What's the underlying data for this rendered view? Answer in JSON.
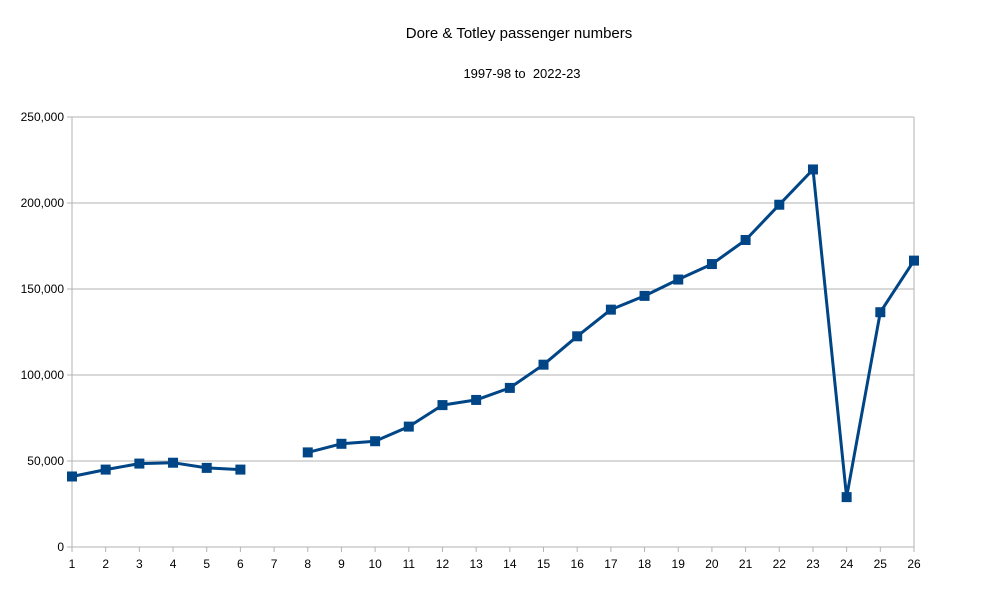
{
  "chart_data": {
    "type": "line",
    "title": "Dore & Totley passenger numbers",
    "subtitle": "1997-98 to  2022-23",
    "xlabel": "",
    "ylabel": "",
    "x": [
      1,
      2,
      3,
      4,
      5,
      6,
      7,
      8,
      9,
      10,
      11,
      12,
      13,
      14,
      15,
      16,
      17,
      18,
      19,
      20,
      21,
      22,
      23,
      24,
      25,
      26
    ],
    "x_tick_labels": [
      "1",
      "2",
      "3",
      "4",
      "5",
      "6",
      "7",
      "8",
      "9",
      "10",
      "11",
      "12",
      "13",
      "14",
      "15",
      "16",
      "17",
      "18",
      "19",
      "20",
      "21",
      "22",
      "23",
      "24",
      "25",
      "26"
    ],
    "series": [
      {
        "values": [
          41000,
          45000,
          48500,
          49000,
          46000,
          45000,
          null,
          55000,
          60000,
          61500,
          70000,
          82500,
          85500,
          92500,
          106000,
          122500,
          138000,
          146000,
          155500,
          164500,
          178500,
          199000,
          219500,
          29000,
          136500,
          166500
        ],
        "color": "#004586",
        "marker": "square"
      }
    ],
    "ylim": [
      0,
      250000
    ],
    "y_ticks": [
      0,
      50000,
      100000,
      150000,
      200000,
      250000
    ],
    "y_tick_labels": [
      "0",
      "50,000",
      "100,000",
      "150,000",
      "200,000",
      "250,000"
    ],
    "grid": true,
    "gridline_color": "#b3b3b3",
    "legend": "none"
  }
}
